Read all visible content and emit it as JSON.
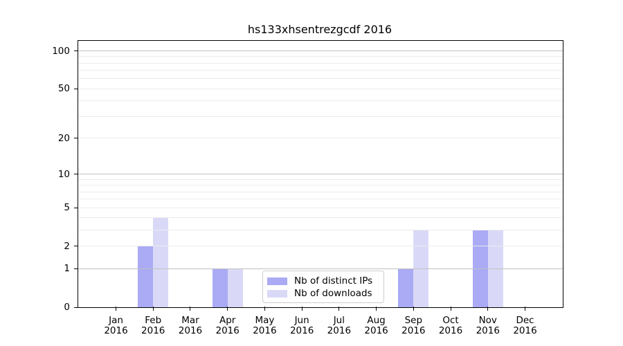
{
  "chart_data": {
    "type": "bar",
    "title": "hs133xhsentrezgcdf 2016",
    "year": "2016",
    "categories": [
      "Jan",
      "Feb",
      "Mar",
      "Apr",
      "May",
      "Jun",
      "Jul",
      "Aug",
      "Sep",
      "Oct",
      "Nov",
      "Dec"
    ],
    "series": [
      {
        "name": "Nb of distinct IPs",
        "color": "#aaaaf5",
        "values": [
          0,
          2,
          0,
          1,
          0,
          0,
          0,
          0,
          1,
          0,
          3,
          0
        ]
      },
      {
        "name": "Nb of downloads",
        "color": "#d9d9f7",
        "values": [
          0,
          4,
          0,
          1,
          0,
          0,
          0,
          0,
          3,
          0,
          3,
          0
        ]
      }
    ],
    "yscale": "log10(y+1)",
    "ylim": [
      0,
      120
    ],
    "yticks": [
      0,
      1,
      2,
      5,
      10,
      20,
      50,
      100
    ],
    "grid": {
      "major": [
        1,
        10,
        100
      ],
      "minor": [
        2,
        3,
        4,
        5,
        6,
        7,
        8,
        9,
        20,
        30,
        40,
        50,
        60,
        70,
        80,
        90
      ],
      "major_color": "#c0c0c0",
      "minor_color": "#ececec"
    },
    "legend_position": "lower center-right inside plot",
    "xlabel": "",
    "ylabel": ""
  }
}
